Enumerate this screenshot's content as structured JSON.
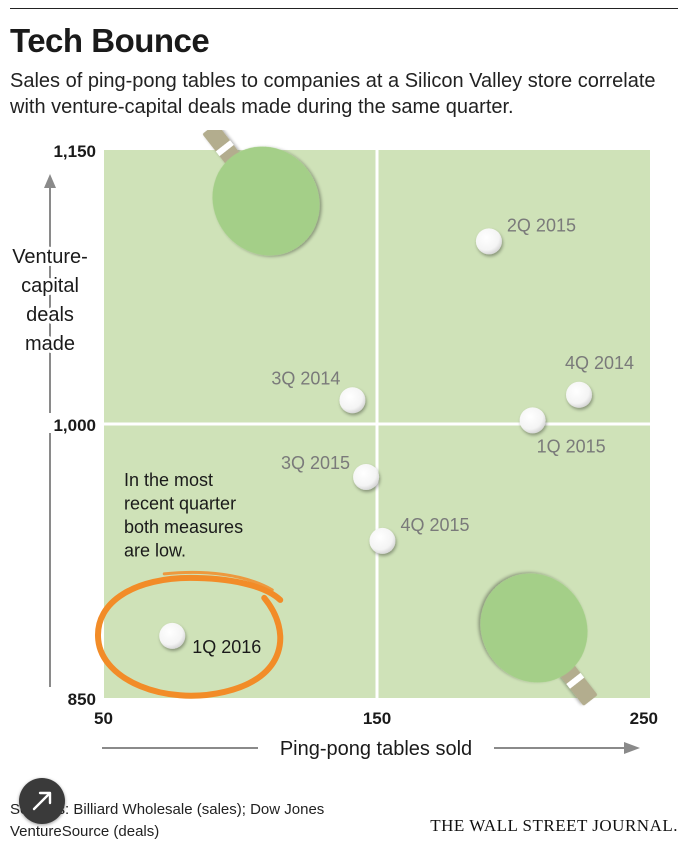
{
  "header": {
    "title": "Tech Bounce",
    "subtitle": "Sales of ping-pong tables to companies at a Silicon Valley store correlate with venture-capital deals made during the same quarter."
  },
  "chart_data": {
    "type": "scatter",
    "xlabel": "Ping-pong tables sold",
    "ylabel_lines": [
      "Venture-",
      "capital",
      "deals",
      "made"
    ],
    "xlim": [
      50,
      250
    ],
    "ylim": [
      850,
      1150
    ],
    "x_ticks": [
      "50",
      "150",
      "250"
    ],
    "y_ticks": [
      "1,150",
      "1,000",
      "850"
    ],
    "x_tick_values": [
      50,
      150,
      250
    ],
    "y_tick_values": [
      1150,
      1000,
      850
    ],
    "points": [
      {
        "label": "2Q 2015",
        "x": 191,
        "y": 1100
      },
      {
        "label": "4Q 2014",
        "x": 224,
        "y": 1016
      },
      {
        "label": "3Q 2014",
        "x": 141,
        "y": 1013
      },
      {
        "label": "1Q 2015",
        "x": 207,
        "y": 1002
      },
      {
        "label": "3Q 2015",
        "x": 146,
        "y": 971
      },
      {
        "label": "4Q 2015",
        "x": 152,
        "y": 936
      },
      {
        "label": "1Q 2016",
        "x": 75,
        "y": 884
      }
    ],
    "annotation": {
      "lines": [
        "In the most",
        "recent quarter",
        "both measures",
        "are low."
      ]
    },
    "colors": {
      "quadrant": "#cfe2b8",
      "divider": "#ffffff",
      "point": "#ffffff",
      "point_label": "#7a7a7a",
      "highlight_ring": "#f28c28",
      "paddle": "#a4cf88",
      "paddle_handle": "#b3ad8e",
      "axis_arrow": "#8a8a8a"
    },
    "icons": [
      "ping-pong-paddle-icon",
      "ping-pong-paddle-icon"
    ]
  },
  "footer": {
    "sources_line1": "Sources: Billiard Wholesale (sales); Dow Jones",
    "sources_line2": "VentureSource (deals)",
    "brand": "THE WALL STREET JOURNAL."
  },
  "controls": {
    "expand_icon": "expand-arrow-icon"
  }
}
